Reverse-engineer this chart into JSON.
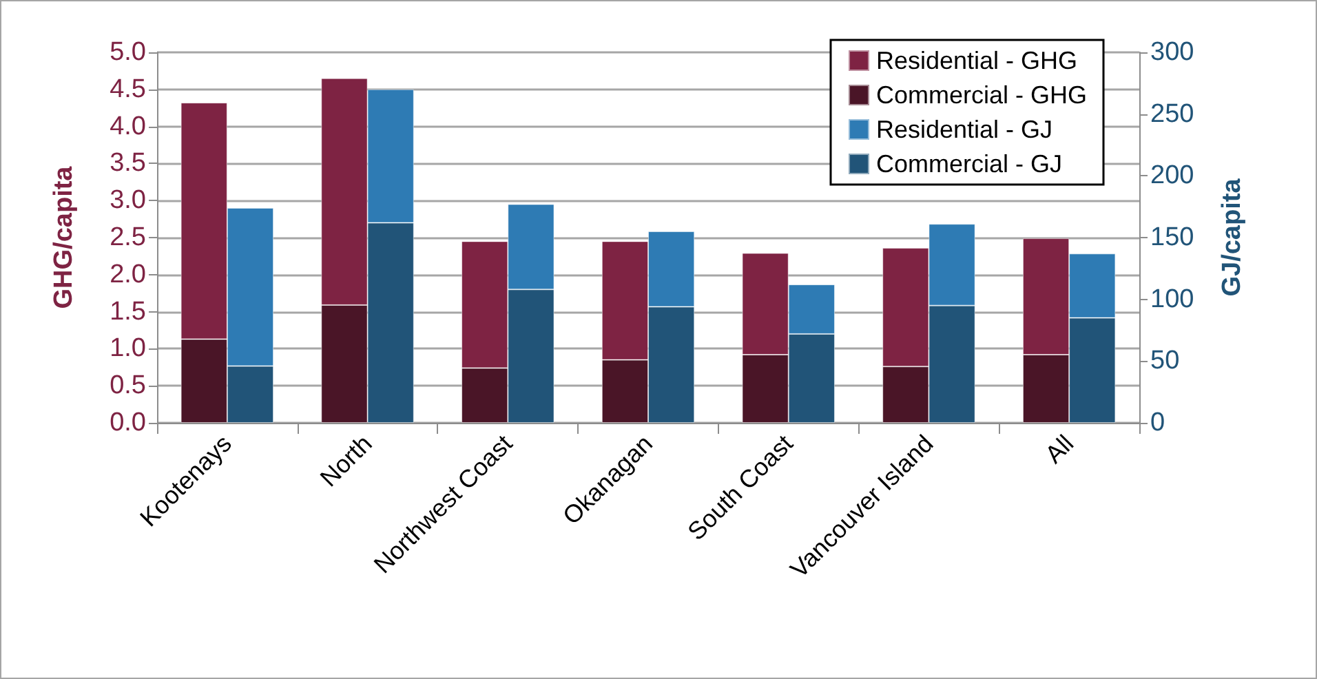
{
  "chart_data": {
    "type": "bar",
    "stacked": true,
    "categories": [
      "Kootenays",
      "North",
      "Northwest Coast",
      "Okanagan",
      "South Coast",
      "Vancouver Island",
      "All"
    ],
    "series": [
      {
        "name": "Commercial - GHG",
        "color": "#4a1527",
        "values": [
          1.13,
          1.59,
          0.74,
          0.85,
          0.92,
          0.76,
          0.92
        ]
      },
      {
        "name": "Residential - GHG",
        "color": "#7e2343",
        "values": [
          3.19,
          3.06,
          1.71,
          1.6,
          1.37,
          1.6,
          1.57
        ]
      },
      {
        "name": "Commercial - GJ",
        "color": "#215478",
        "axis": "y2",
        "values": [
          46,
          162,
          108,
          94,
          72,
          95,
          85
        ]
      },
      {
        "name": "Residential - GJ",
        "color": "#2e7bb4",
        "axis": "y2",
        "values": [
          128,
          108,
          69,
          61,
          40,
          66,
          52
        ]
      }
    ],
    "ylabel": "GHG/capita",
    "y2label": "GJ/capita",
    "ylim": [
      0,
      5
    ],
    "yticks": [
      {
        "value": 0,
        "label": "0.0"
      },
      0.5,
      {
        "value": 1,
        "label": "1.0"
      },
      1.5,
      {
        "value": 2,
        "label": "2.0"
      },
      2.5,
      {
        "value": 3,
        "label": "3.0"
      },
      3.5,
      {
        "value": 4,
        "label": "4.0"
      },
      4.5,
      {
        "value": 5,
        "label": "5.0"
      }
    ],
    "y2lim": [
      0,
      300
    ],
    "y2ticks": [
      0,
      50,
      100,
      150,
      200,
      250,
      300
    ],
    "grid": "y",
    "legend": "top right"
  }
}
